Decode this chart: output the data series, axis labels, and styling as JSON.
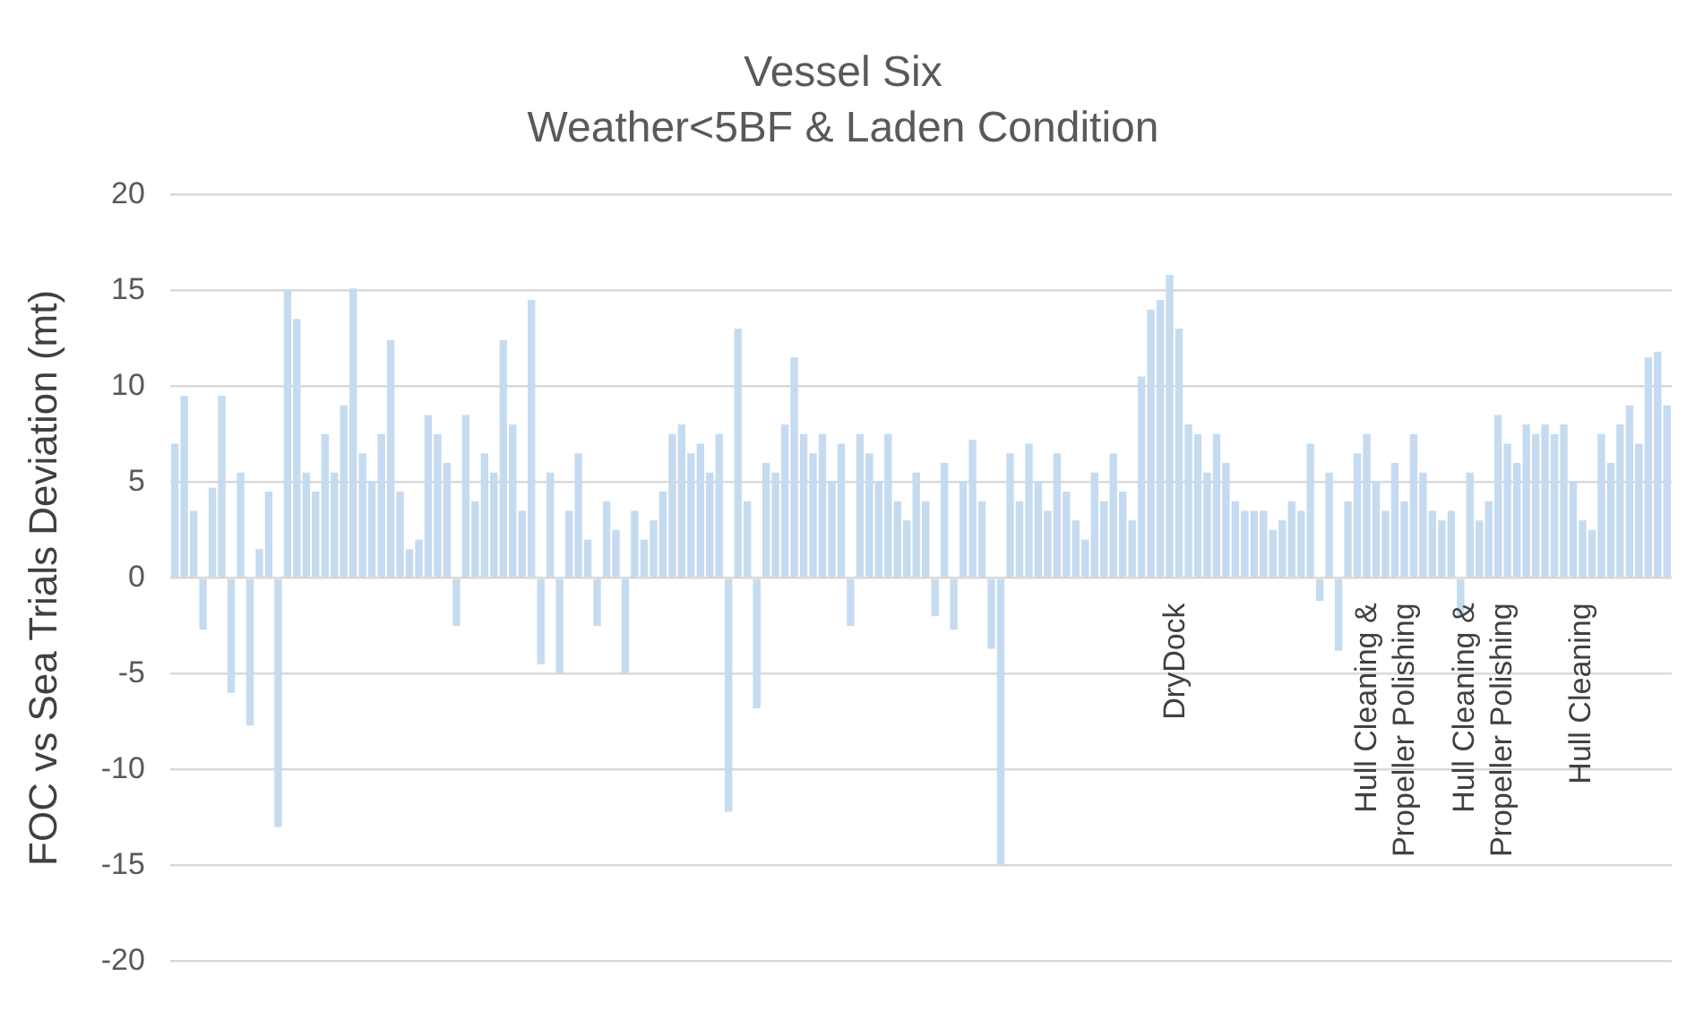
{
  "chart_data": {
    "type": "bar",
    "title": "Vessel Six",
    "subtitle": "Weather<5BF & Laden Condition",
    "ylabel": "FOC vs Sea Trials Deviation (mt)",
    "categories": [
      null,
      null,
      null,
      null,
      null,
      null,
      null,
      null,
      null,
      null,
      null,
      null,
      null,
      null,
      null,
      null,
      null,
      null,
      null,
      null,
      null,
      null,
      null,
      null,
      null,
      null,
      null,
      null,
      null,
      null,
      null,
      null,
      null,
      null,
      null,
      null,
      null,
      null,
      null,
      null,
      null,
      null,
      null,
      null,
      null,
      null,
      null,
      null,
      null,
      null,
      null,
      null,
      null,
      null,
      null,
      null,
      null,
      null,
      null,
      null,
      null,
      null,
      null,
      null,
      null,
      null,
      null,
      null,
      null,
      null,
      null,
      null,
      null,
      null,
      null,
      null,
      null,
      null,
      null,
      null,
      null,
      null,
      null,
      null,
      null,
      null,
      null,
      null,
      null,
      null,
      null,
      null,
      null,
      null,
      null,
      null,
      null,
      null,
      null,
      null,
      null,
      null,
      null,
      null,
      null,
      null,
      null,
      null,
      null,
      null,
      null,
      null,
      null,
      null,
      null,
      null,
      null,
      null,
      null,
      null,
      null,
      null,
      null,
      null,
      null,
      null,
      null,
      null,
      null,
      null,
      null,
      null,
      null,
      null,
      null,
      null,
      null,
      null,
      null,
      null,
      null,
      null,
      null,
      null,
      null,
      null,
      null,
      null,
      null,
      null,
      null,
      null,
      null,
      null,
      null,
      null,
      null,
      null,
      null,
      null
    ],
    "values": [
      7,
      9.5,
      3.5,
      -2.7,
      4.7,
      9.5,
      -6,
      5.5,
      -7.7,
      1.5,
      4.5,
      -13,
      15,
      13.5,
      5.5,
      4.5,
      7.5,
      5.5,
      9,
      15.1,
      6.5,
      5,
      7.5,
      12.4,
      4.5,
      1.5,
      2,
      8.5,
      7.5,
      6,
      -2.5,
      8.5,
      4,
      6.5,
      5.5,
      12.4,
      8,
      3.5,
      14.5,
      -4.5,
      5.5,
      -5,
      3.5,
      6.5,
      2,
      -2.5,
      4,
      2.5,
      -5,
      3.5,
      2,
      3,
      4.5,
      7.5,
      8,
      6.5,
      7,
      5.5,
      7.5,
      -12.2,
      13,
      4,
      -6.8,
      6,
      5.5,
      8,
      11.5,
      7.5,
      6.5,
      7.5,
      5,
      7,
      -2.5,
      7.5,
      6.5,
      5,
      7.5,
      4,
      3,
      5.5,
      4,
      -2,
      6,
      -2.7,
      5,
      7.2,
      4,
      -3.7,
      -15,
      6.5,
      4,
      7,
      5,
      3.5,
      6.5,
      4.5,
      3,
      2,
      5.5,
      4,
      6.5,
      4.5,
      3,
      10.5,
      14,
      14.5,
      15.8,
      13,
      8,
      7.5,
      5.5,
      7.5,
      6,
      4,
      3.5,
      3.5,
      3.5,
      2.5,
      3,
      4,
      3.5,
      7,
      -1.2,
      5.5,
      -3.8,
      4,
      6.5,
      7.5,
      5,
      3.5,
      6,
      4,
      7.5,
      5.5,
      3.5,
      3,
      3.5,
      -2,
      5.5,
      3,
      4,
      8.5,
      7,
      6,
      8,
      7.5,
      8,
      7.5,
      8,
      5,
      3,
      2.5,
      7.5,
      6,
      8,
      9,
      7,
      11.5,
      11.8,
      9
    ],
    "color": "#c5dbf0",
    "ylim": [
      -20,
      20
    ],
    "yticks": [
      -20,
      -15,
      -10,
      -5,
      0,
      5,
      10,
      15,
      20
    ],
    "grid": "y",
    "legend": false,
    "tick_labels": "y",
    "annotations": [
      "DryDock",
      "Hull Cleaning & Propeller Polishing",
      "Hull Cleaning & Propeller Polishing",
      "Hull Cleaning"
    ]
  }
}
